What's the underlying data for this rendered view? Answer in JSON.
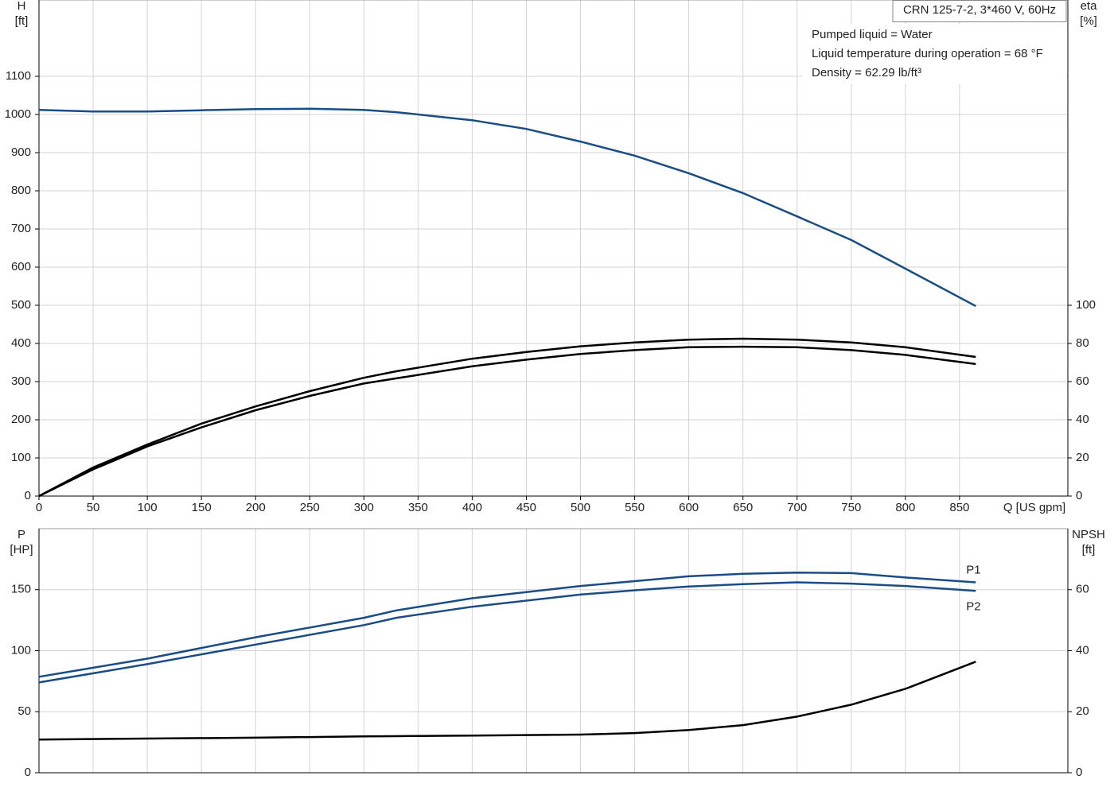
{
  "chart_data": [
    {
      "type": "line",
      "title": "CRN 125-7-2, 3*460 V, 60Hz",
      "notes": [
        "Pumped liquid = Water",
        "Liquid temperature during operation = 68 °F",
        "Density = 62.29 lb/ft³"
      ],
      "y_label": [
        "H",
        "[ft]"
      ],
      "y2_label": [
        "eta",
        "[%]"
      ],
      "x_label": "Q [US gpm]",
      "x": [
        0,
        50,
        100,
        150,
        200,
        250,
        300,
        330,
        400,
        450,
        500,
        550,
        600,
        650,
        700,
        750,
        800,
        865
      ],
      "xlim": [
        0,
        950
      ],
      "xticks": [
        0,
        50,
        100,
        150,
        200,
        250,
        300,
        350,
        400,
        450,
        500,
        550,
        600,
        650,
        700,
        750,
        800,
        850
      ],
      "ylim": [
        0,
        1300
      ],
      "yticks": [
        0,
        100,
        200,
        300,
        400,
        500,
        600,
        700,
        800,
        900,
        1000,
        1100
      ],
      "y2lim": [
        0,
        260
      ],
      "y2ticks": [
        0,
        20,
        40,
        60,
        80,
        100
      ],
      "grid": true,
      "series": [
        {
          "color": "#1a4d85",
          "values": [
            1012,
            1008,
            1008,
            1011,
            1014,
            1015,
            1012,
            1006,
            985,
            962,
            929,
            892,
            846,
            794,
            733,
            671,
            596,
            498
          ]
        },
        {
          "color": "#000000",
          "axis": "y2",
          "values": [
            0,
            15,
            27,
            38,
            47,
            55,
            62,
            65.4,
            72,
            75.5,
            78.5,
            80.5,
            82,
            82.5,
            82,
            80.5,
            78,
            72.9
          ]
        },
        {
          "color": "#000000",
          "axis": "y2",
          "values": [
            0,
            14,
            26,
            36,
            45,
            52.5,
            59,
            61.7,
            68,
            71.5,
            74.5,
            76.5,
            78,
            78.3,
            78,
            76.5,
            74,
            69.2
          ]
        }
      ]
    },
    {
      "type": "line",
      "y_label": [
        "P",
        "[HP]"
      ],
      "y2_label": [
        "NPSH",
        "[ft]"
      ],
      "x": [
        0,
        100,
        200,
        300,
        330,
        400,
        500,
        550,
        600,
        650,
        700,
        750,
        800,
        865
      ],
      "xlim": [
        0,
        950
      ],
      "ylim": [
        0,
        200
      ],
      "yticks": [
        0,
        50,
        100,
        150
      ],
      "y2lim": [
        0,
        80
      ],
      "y2ticks": [
        0,
        20,
        40,
        60
      ],
      "grid": true,
      "series": [
        {
          "name": "P1",
          "color": "#1a4d85",
          "values": [
            78.6,
            93.5,
            111,
            127,
            133,
            143,
            153,
            157,
            161,
            163,
            164,
            163.6,
            160,
            156
          ]
        },
        {
          "name": "P2",
          "color": "#1a4d85",
          "values": [
            74,
            89,
            105,
            121,
            127,
            136,
            146,
            149.5,
            152.6,
            154.5,
            156,
            155,
            153,
            149
          ]
        },
        {
          "color": "#000000",
          "axis": "y2",
          "values": [
            10.9,
            11.2,
            11.5,
            11.9,
            12,
            12.2,
            12.5,
            13,
            14,
            15.6,
            18.4,
            22.3,
            27.5,
            36.4
          ]
        }
      ]
    }
  ]
}
